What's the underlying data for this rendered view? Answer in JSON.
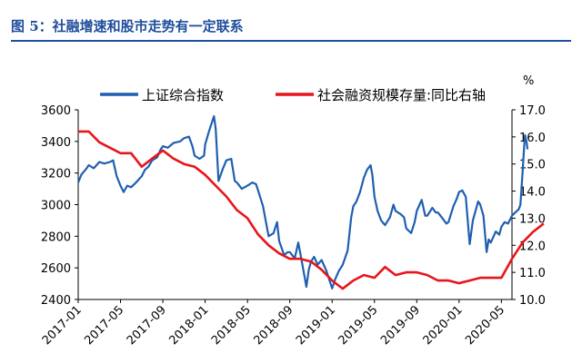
{
  "figure": {
    "title": "图 5：社融增速和股市走势有一定联系"
  },
  "chart_data": {
    "type": "line",
    "x_ticks": [
      "2017-01",
      "2017-05",
      "2017-09",
      "2018-01",
      "2018-05",
      "2018-09",
      "2019-01",
      "2019-05",
      "2019-09",
      "2020-01",
      "2020-05"
    ],
    "x_range": [
      "2017-01",
      "2020-06"
    ],
    "y_left": {
      "min": 2400,
      "max": 3600,
      "ticks": [
        2400,
        2600,
        2800,
        3000,
        3200,
        3400,
        3600
      ]
    },
    "y_right": {
      "min": 10.0,
      "max": 17.0,
      "ticks": [
        "10.0",
        "11.0",
        "12.0",
        "13.0",
        "14.0",
        "15.0",
        "16.0",
        "17.0"
      ],
      "unit": "%"
    },
    "legend_position": "top",
    "series": [
      {
        "name": "上证综合指数",
        "axis": "left",
        "color": "#1f5fb0",
        "points": [
          [
            "2017-01",
            3140
          ],
          [
            "2017-01-10",
            3190
          ],
          [
            "2017-01-25",
            3230
          ],
          [
            "2017-02",
            3250
          ],
          [
            "2017-02-15",
            3230
          ],
          [
            "2017-03",
            3270
          ],
          [
            "2017-03-15",
            3260
          ],
          [
            "2017-04",
            3270
          ],
          [
            "2017-04-10",
            3280
          ],
          [
            "2017-04-20",
            3180
          ],
          [
            "2017-05",
            3120
          ],
          [
            "2017-05-10",
            3080
          ],
          [
            "2017-05-20",
            3120
          ],
          [
            "2017-06",
            3110
          ],
          [
            "2017-06-15",
            3140
          ],
          [
            "2017-07",
            3180
          ],
          [
            "2017-07-10",
            3220
          ],
          [
            "2017-07-20",
            3240
          ],
          [
            "2017-08",
            3280
          ],
          [
            "2017-08-15",
            3300
          ],
          [
            "2017-08-25",
            3350
          ],
          [
            "2017-09",
            3370
          ],
          [
            "2017-09-15",
            3360
          ],
          [
            "2017-10",
            3390
          ],
          [
            "2017-10-20",
            3400
          ],
          [
            "2017-11",
            3420
          ],
          [
            "2017-11-15",
            3430
          ],
          [
            "2017-11-25",
            3370
          ],
          [
            "2017-12",
            3310
          ],
          [
            "2017-12-15",
            3290
          ],
          [
            "2017-12-28",
            3310
          ],
          [
            "2018-01",
            3380
          ],
          [
            "2018-01-10",
            3450
          ],
          [
            "2018-01-20",
            3520
          ],
          [
            "2018-01-26",
            3560
          ],
          [
            "2018-02",
            3480
          ],
          [
            "2018-02-09",
            3150
          ],
          [
            "2018-02-20",
            3220
          ],
          [
            "2018-03",
            3280
          ],
          [
            "2018-03-15",
            3290
          ],
          [
            "2018-03-25",
            3150
          ],
          [
            "2018-04",
            3140
          ],
          [
            "2018-04-15",
            3100
          ],
          [
            "2018-05",
            3120
          ],
          [
            "2018-05-15",
            3140
          ],
          [
            "2018-05-25",
            3130
          ],
          [
            "2018-06",
            3090
          ],
          [
            "2018-06-15",
            2990
          ],
          [
            "2018-06-25",
            2870
          ],
          [
            "2018-07",
            2800
          ],
          [
            "2018-07-15",
            2820
          ],
          [
            "2018-07-25",
            2890
          ],
          [
            "2018-08",
            2770
          ],
          [
            "2018-08-15",
            2680
          ],
          [
            "2018-08-25",
            2700
          ],
          [
            "2018-09",
            2700
          ],
          [
            "2018-09-15",
            2660
          ],
          [
            "2018-09-25",
            2760
          ],
          [
            "2018-10",
            2690
          ],
          [
            "2018-10-10",
            2580
          ],
          [
            "2018-10-18",
            2480
          ],
          [
            "2018-10-25",
            2590
          ],
          [
            "2018-11",
            2640
          ],
          [
            "2018-11-10",
            2670
          ],
          [
            "2018-11-20",
            2620
          ],
          [
            "2018-12",
            2650
          ],
          [
            "2018-12-15",
            2580
          ],
          [
            "2018-12-28",
            2490
          ],
          [
            "2019-01",
            2470
          ],
          [
            "2019-01-10",
            2530
          ],
          [
            "2019-01-20",
            2580
          ],
          [
            "2019-02",
            2620
          ],
          [
            "2019-02-15",
            2710
          ],
          [
            "2019-02-25",
            2920
          ],
          [
            "2019-03",
            2990
          ],
          [
            "2019-03-10",
            3020
          ],
          [
            "2019-03-20",
            3080
          ],
          [
            "2019-04",
            3170
          ],
          [
            "2019-04-10",
            3220
          ],
          [
            "2019-04-20",
            3250
          ],
          [
            "2019-04-25",
            3190
          ],
          [
            "2019-05",
            3050
          ],
          [
            "2019-05-10",
            2960
          ],
          [
            "2019-05-20",
            2900
          ],
          [
            "2019-06",
            2870
          ],
          [
            "2019-06-15",
            2920
          ],
          [
            "2019-06-25",
            3000
          ],
          [
            "2019-07",
            2960
          ],
          [
            "2019-07-15",
            2940
          ],
          [
            "2019-07-25",
            2920
          ],
          [
            "2019-08",
            2850
          ],
          [
            "2019-08-15",
            2820
          ],
          [
            "2019-08-25",
            2890
          ],
          [
            "2019-09",
            2960
          ],
          [
            "2019-09-15",
            3030
          ],
          [
            "2019-09-25",
            2930
          ],
          [
            "2019-10",
            2930
          ],
          [
            "2019-10-15",
            2980
          ],
          [
            "2019-10-25",
            2950
          ],
          [
            "2019-11",
            2950
          ],
          [
            "2019-11-15",
            2910
          ],
          [
            "2019-11-25",
            2880
          ],
          [
            "2019-12",
            2890
          ],
          [
            "2019-12-15",
            2990
          ],
          [
            "2019-12-25",
            3040
          ],
          [
            "2020-01",
            3080
          ],
          [
            "2020-01-10",
            3090
          ],
          [
            "2020-01-20",
            3050
          ],
          [
            "2020-02",
            2750
          ],
          [
            "2020-02-10",
            2900
          ],
          [
            "2020-02-25",
            3020
          ],
          [
            "2020-03",
            3000
          ],
          [
            "2020-03-10",
            2930
          ],
          [
            "2020-03-19",
            2700
          ],
          [
            "2020-03-25",
            2780
          ],
          [
            "2020-04",
            2760
          ],
          [
            "2020-04-15",
            2830
          ],
          [
            "2020-04-25",
            2810
          ],
          [
            "2020-05",
            2860
          ],
          [
            "2020-05-10",
            2890
          ],
          [
            "2020-05-20",
            2880
          ],
          [
            "2020-06",
            2930
          ],
          [
            "2020-06-10",
            2950
          ],
          [
            "2020-06-20",
            2970
          ],
          [
            "2020-06-25",
            3000
          ],
          [
            "2020-07",
            3200
          ],
          [
            "2020-07-05",
            3350
          ],
          [
            "2020-07-08",
            3440
          ],
          [
            "2020-07-12",
            3400
          ],
          [
            "2020-07-15",
            3350
          ]
        ]
      },
      {
        "name": "社会融资规模存量:同比右轴",
        "axis": "right",
        "color": "#e8141b",
        "points": [
          [
            "2017-01",
            16.2
          ],
          [
            "2017-02",
            16.2
          ],
          [
            "2017-03",
            15.8
          ],
          [
            "2017-04",
            15.6
          ],
          [
            "2017-05",
            15.4
          ],
          [
            "2017-06",
            15.4
          ],
          [
            "2017-07",
            14.9
          ],
          [
            "2017-08",
            15.2
          ],
          [
            "2017-09",
            15.5
          ],
          [
            "2017-10",
            15.2
          ],
          [
            "2017-11",
            15.0
          ],
          [
            "2017-12",
            14.9
          ],
          [
            "2018-01",
            14.6
          ],
          [
            "2018-02",
            14.2
          ],
          [
            "2018-03",
            13.8
          ],
          [
            "2018-04",
            13.3
          ],
          [
            "2018-05",
            13.0
          ],
          [
            "2018-06",
            12.4
          ],
          [
            "2018-07",
            12.0
          ],
          [
            "2018-08",
            11.7
          ],
          [
            "2018-09",
            11.5
          ],
          [
            "2018-10",
            11.5
          ],
          [
            "2018-11",
            11.4
          ],
          [
            "2018-12",
            11.1
          ],
          [
            "2019-01",
            10.7
          ],
          [
            "2019-02",
            10.4
          ],
          [
            "2019-03",
            10.7
          ],
          [
            "2019-04",
            10.9
          ],
          [
            "2019-05",
            10.8
          ],
          [
            "2019-06",
            11.2
          ],
          [
            "2019-07",
            10.9
          ],
          [
            "2019-08",
            11.0
          ],
          [
            "2019-09",
            11.0
          ],
          [
            "2019-10",
            10.9
          ],
          [
            "2019-11",
            10.7
          ],
          [
            "2019-12",
            10.7
          ],
          [
            "2020-01",
            10.6
          ],
          [
            "2020-02",
            10.7
          ],
          [
            "2020-03",
            10.8
          ],
          [
            "2020-04",
            10.8
          ],
          [
            "2020-05",
            10.8
          ],
          [
            "2020-06",
            11.5
          ],
          [
            "2020-07",
            12.1
          ],
          [
            "2020-08",
            12.5
          ],
          [
            "2020-09",
            12.8
          ]
        ]
      }
    ]
  }
}
